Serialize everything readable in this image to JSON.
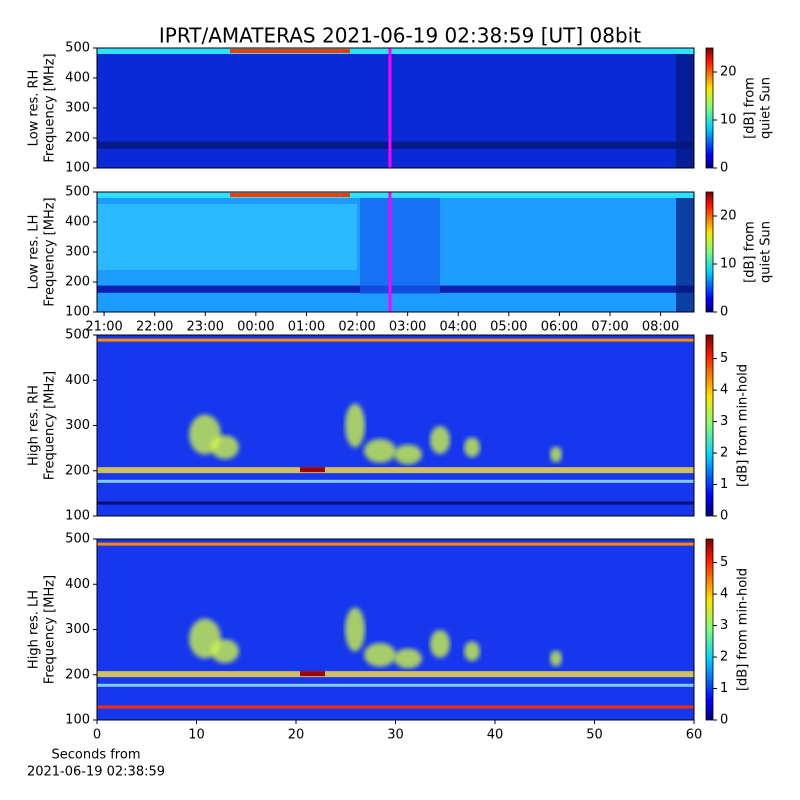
{
  "title": "IPRT/AMATERAS 2021-06-19 02:38:59 [UT]   08bit",
  "chart_data": [
    {
      "type": "heatmap",
      "ylabel": [
        "Low res. RH",
        "Frequency [MHz]"
      ],
      "ylim": [
        100,
        500
      ],
      "yticks": [
        100,
        200,
        300,
        400,
        500
      ],
      "xlim": [
        20.86,
        32.66
      ],
      "marker_x": 26.65,
      "marker_color": "#ff00ff",
      "clim": [
        0,
        25
      ],
      "cticks": [
        0,
        10,
        20
      ],
      "clabel": [
        "[dB] from",
        "quiet Sun"
      ]
    },
    {
      "type": "heatmap",
      "ylabel": [
        "Low res. LH",
        "Frequency [MHz]"
      ],
      "ylim": [
        100,
        500
      ],
      "yticks": [
        100,
        200,
        300,
        400,
        500
      ],
      "xlim": [
        20.86,
        32.66
      ],
      "marker_x": 26.65,
      "marker_color": "#ff00ff",
      "xticks": [
        {
          "value": 21,
          "label": "21:00"
        },
        {
          "value": 22,
          "label": "22:00"
        },
        {
          "value": 23,
          "label": "23:00"
        },
        {
          "value": 24,
          "label": "00:00"
        },
        {
          "value": 25,
          "label": "01:00"
        },
        {
          "value": 26,
          "label": "02:00"
        },
        {
          "value": 27,
          "label": "03:00"
        },
        {
          "value": 28,
          "label": "04:00"
        },
        {
          "value": 29,
          "label": "05:00"
        },
        {
          "value": 30,
          "label": "06:00"
        },
        {
          "value": 31,
          "label": "07:00"
        },
        {
          "value": 32,
          "label": "08:00"
        }
      ],
      "clim": [
        0,
        25
      ],
      "cticks": [
        0,
        10,
        20
      ],
      "clabel": [
        "[dB] from",
        "quiet Sun"
      ]
    },
    {
      "type": "heatmap",
      "ylabel": [
        "High res. RH",
        "Frequency [MHz]"
      ],
      "ylim": [
        100,
        500
      ],
      "yticks": [
        100,
        200,
        300,
        400,
        500
      ],
      "xlim": [
        0,
        60
      ],
      "clim": [
        0,
        5.75
      ],
      "cticks": [
        0,
        1,
        2,
        3,
        4,
        5
      ],
      "clabel": [
        "[dB] from min-hold"
      ]
    },
    {
      "type": "heatmap",
      "ylabel": [
        "High res. LH",
        "Frequency [MHz]"
      ],
      "ylim": [
        100,
        500
      ],
      "yticks": [
        100,
        200,
        300,
        400,
        500
      ],
      "xlim": [
        0,
        60
      ],
      "xticks": [
        0,
        10,
        20,
        30,
        40,
        50,
        60
      ],
      "xlabel": [
        "Seconds from",
        "2021-06-19 02:38:59"
      ],
      "clim": [
        0,
        5.75
      ],
      "cticks": [
        0,
        1,
        2,
        3,
        4,
        5
      ],
      "clabel": [
        "[dB] from min-hold"
      ]
    }
  ]
}
